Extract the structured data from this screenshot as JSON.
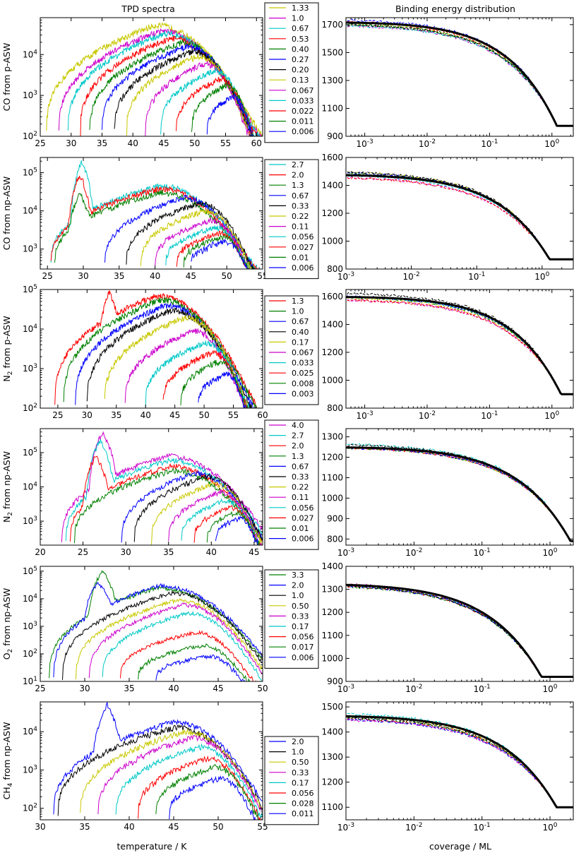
{
  "col_titles": {
    "left": "TPD spectra",
    "right": "Binding energy distribution"
  },
  "xlabels": {
    "left": "temperature / K",
    "right": "coverage / ML"
  },
  "colors": {
    "y": "#c8c800",
    "m": "#cc00cc",
    "c": "#00c8c8",
    "g": "#008000",
    "b": "#0000ff",
    "k": "#000000",
    "r": "#ff0000"
  },
  "chart_data": [
    {
      "type": "line",
      "name": "CO from p-ASW",
      "ylabel": {
        "species": "CO",
        "sub": "",
        "rest": " from p-ASW"
      },
      "tpd": {
        "xlim": [
          25,
          61
        ],
        "xticks": [
          25,
          30,
          35,
          40,
          45,
          50,
          55,
          60
        ],
        "ylim": [
          100,
          80000
        ],
        "yticks": [
          {
            "v": 100,
            "l": "10",
            "e": "2"
          },
          {
            "v": 1000,
            "l": "10",
            "e": "3"
          },
          {
            "v": 10000,
            "l": "10",
            "e": "4"
          }
        ]
      },
      "legend": [
        {
          "label": "1.33",
          "color": "y",
          "peak": 52000,
          "tmin": 26.0,
          "tmax": 58
        },
        {
          "label": "1.0",
          "color": "m",
          "peak": 38000,
          "tmin": 28.0,
          "tmax": 58
        },
        {
          "label": "0.67",
          "color": "c",
          "peak": 33000,
          "tmin": 29.5,
          "tmax": 58
        },
        {
          "label": "0.53",
          "color": "r",
          "peak": 25000,
          "tmin": 31.5,
          "tmax": 58
        },
        {
          "label": "0.40",
          "color": "g",
          "peak": 20000,
          "tmin": 33.0,
          "tmax": 58
        },
        {
          "label": "0.27",
          "color": "b",
          "peak": 16000,
          "tmin": 35.0,
          "tmax": 58
        },
        {
          "label": "0.20",
          "color": "k",
          "peak": 12000,
          "tmin": 37.0,
          "tmax": 58
        },
        {
          "label": "0.13",
          "color": "y",
          "peak": 9000,
          "tmin": 39.0,
          "tmax": 58
        },
        {
          "label": "0.067",
          "color": "m",
          "peak": 6000,
          "tmin": 42.0,
          "tmax": 58
        },
        {
          "label": "0.033",
          "color": "c",
          "peak": 4000,
          "tmin": 44.5,
          "tmax": 59
        },
        {
          "label": "0.022",
          "color": "r",
          "peak": 2500,
          "tmin": 47.0,
          "tmax": 59
        },
        {
          "label": "0.011",
          "color": "g",
          "peak": 1800,
          "tmin": 49.5,
          "tmax": 59
        },
        {
          "label": "0.006",
          "color": "b",
          "peak": 900,
          "tmin": 52.0,
          "tmax": 59
        }
      ],
      "be": {
        "xlim": [
          0.0005,
          2.2
        ],
        "xticks": [
          {
            "v": 0.001,
            "e": "-3"
          },
          {
            "v": 0.01,
            "e": "-2"
          },
          {
            "v": 0.1,
            "e": "-1"
          },
          {
            "v": 1,
            "e": "0"
          }
        ],
        "ylim": [
          900,
          1750
        ],
        "yticks": [
          900,
          1100,
          1300,
          1500,
          1700
        ],
        "e0": 1725,
        "e1": 975,
        "theta_end": 1.2,
        "theta_max": 1.0
      }
    },
    {
      "type": "line",
      "name": "CO from np-ASW",
      "ylabel": {
        "species": "CO",
        "sub": "",
        "rest": " from np-ASW"
      },
      "tpd": {
        "xlim": [
          24,
          55
        ],
        "xticks": [
          25,
          30,
          35,
          40,
          45,
          50,
          55
        ],
        "ylim": [
          300,
          250000
        ],
        "yticks": [
          {
            "v": 1000,
            "l": "10",
            "e": "3"
          },
          {
            "v": 10000,
            "l": "10",
            "e": "4"
          },
          {
            "v": 100000,
            "l": "10",
            "e": "5"
          }
        ]
      },
      "legend": [
        {
          "label": "2.7",
          "color": "c",
          "peak": 45000,
          "tmin": 25.5,
          "tmax": 53,
          "spike": 190000,
          "spikeT": 29.8
        },
        {
          "label": "2.0",
          "color": "r",
          "peak": 38000,
          "tmin": 25.5,
          "tmax": 53,
          "spike": 90000,
          "spikeT": 29.5
        },
        {
          "label": "1.3",
          "color": "g",
          "peak": 30000,
          "tmin": 26.0,
          "tmax": 53,
          "spike": 30000,
          "spikeT": 29.5
        },
        {
          "label": "0.67",
          "color": "b",
          "peak": 22000,
          "tmin": 33.0,
          "tmax": 53
        },
        {
          "label": "0.33",
          "color": "k",
          "peak": 16000,
          "tmin": 36.0,
          "tmax": 53
        },
        {
          "label": "0.22",
          "color": "y",
          "peak": 10000,
          "tmin": 38.0,
          "tmax": 53
        },
        {
          "label": "0.11",
          "color": "m",
          "peak": 5500,
          "tmin": 40.0,
          "tmax": 53
        },
        {
          "label": "0.056",
          "color": "c",
          "peak": 3500,
          "tmin": 41.5,
          "tmax": 53
        },
        {
          "label": "0.027",
          "color": "r",
          "peak": 2500,
          "tmin": 43.0,
          "tmax": 53
        },
        {
          "label": "0.01",
          "color": "g",
          "peak": 2000,
          "tmin": 44.0,
          "tmax": 53
        },
        {
          "label": "0.006",
          "color": "b",
          "peak": 1500,
          "tmin": 45.0,
          "tmax": 53
        }
      ],
      "be": {
        "xlim": [
          0.001,
          3
        ],
        "xticks": [
          {
            "v": 0.001,
            "e": "-3"
          },
          {
            "v": 0.01,
            "e": "-2"
          },
          {
            "v": 0.1,
            "e": "-1"
          },
          {
            "v": 1,
            "e": "0"
          }
        ],
        "ylim": [
          800,
          1600
        ],
        "yticks": [
          800,
          1000,
          1200,
          1400,
          1600
        ],
        "e0": 1485,
        "e1": 870,
        "theta_end": 1.3,
        "theta_max": 1.3
      }
    },
    {
      "type": "line",
      "name": "N2 from p-ASW",
      "ylabel": {
        "species": "N",
        "sub": "2",
        "rest": " from p-ASW"
      },
      "tpd": {
        "xlim": [
          22,
          60
        ],
        "xticks": [
          25,
          30,
          35,
          40,
          45,
          50,
          55,
          60
        ],
        "ylim": [
          100,
          100000
        ],
        "yticks": [
          {
            "v": 100,
            "l": "10",
            "e": "2"
          },
          {
            "v": 1000,
            "l": "10",
            "e": "3"
          },
          {
            "v": 10000,
            "l": "10",
            "e": "4"
          },
          {
            "v": 100000,
            "l": "10",
            "e": "5"
          }
        ]
      },
      "legend": [
        {
          "label": "1.3",
          "color": "r",
          "peak": 70000,
          "tmin": 24.5,
          "tmax": 56,
          "spike": 85000,
          "spikeT": 33.8
        },
        {
          "label": "1.0",
          "color": "g",
          "peak": 55000,
          "tmin": 26.0,
          "tmax": 56
        },
        {
          "label": "0.67",
          "color": "b",
          "peak": 40000,
          "tmin": 28.0,
          "tmax": 56
        },
        {
          "label": "0.40",
          "color": "k",
          "peak": 30000,
          "tmin": 30.0,
          "tmax": 56
        },
        {
          "label": "0.17",
          "color": "y",
          "peak": 20000,
          "tmin": 33.0,
          "tmax": 56
        },
        {
          "label": "0.067",
          "color": "m",
          "peak": 9000,
          "tmin": 36.5,
          "tmax": 56
        },
        {
          "label": "0.033",
          "color": "c",
          "peak": 4500,
          "tmin": 40.0,
          "tmax": 57
        },
        {
          "label": "0.025",
          "color": "r",
          "peak": 2500,
          "tmin": 43.0,
          "tmax": 57
        },
        {
          "label": "0.008",
          "color": "g",
          "peak": 1500,
          "tmin": 46.0,
          "tmax": 57
        },
        {
          "label": "0.003",
          "color": "b",
          "peak": 700,
          "tmin": 49.0,
          "tmax": 57
        }
      ],
      "be": {
        "xlim": [
          0.0005,
          2.2
        ],
        "xticks": [
          {
            "v": 0.001,
            "e": "-3"
          },
          {
            "v": 0.01,
            "e": "-2"
          },
          {
            "v": 0.1,
            "e": "-1"
          },
          {
            "v": 1,
            "e": "0"
          }
        ],
        "ylim": [
          800,
          1650
        ],
        "yticks": [
          800,
          1000,
          1200,
          1400,
          1600
        ],
        "e0": 1605,
        "e1": 900,
        "theta_end": 1.4,
        "theta_max": 1.0
      }
    },
    {
      "type": "line",
      "name": "N2 from np-ASW",
      "ylabel": {
        "species": "N",
        "sub": "2",
        "rest": " from np-ASW"
      },
      "tpd": {
        "xlim": [
          20,
          46
        ],
        "xticks": [
          20,
          25,
          30,
          35,
          40,
          45
        ],
        "ylim": [
          200,
          500000
        ],
        "yticks": [
          {
            "v": 1000,
            "l": "10",
            "e": "3"
          },
          {
            "v": 10000,
            "l": "10",
            "e": "4"
          },
          {
            "v": 100000,
            "l": "10",
            "e": "5"
          }
        ]
      },
      "legend": [
        {
          "label": "4.0",
          "color": "m",
          "peak": 80000,
          "tmin": 22.5,
          "tmax": 45,
          "spike": 380000,
          "spikeT": 27.3
        },
        {
          "label": "2.7",
          "color": "c",
          "peak": 60000,
          "tmin": 23.0,
          "tmax": 45,
          "spike": 220000,
          "spikeT": 27.0
        },
        {
          "label": "2.0",
          "color": "r",
          "peak": 40000,
          "tmin": 23.5,
          "tmax": 45,
          "spike": 80000,
          "spikeT": 26.5
        },
        {
          "label": "1.3",
          "color": "g",
          "peak": 30000,
          "tmin": 24.0,
          "tmax": 45
        },
        {
          "label": "0.67",
          "color": "b",
          "peak": 25000,
          "tmin": 29.5,
          "tmax": 45
        },
        {
          "label": "0.33",
          "color": "k",
          "peak": 20000,
          "tmin": 31.0,
          "tmax": 45
        },
        {
          "label": "0.22",
          "color": "y",
          "peak": 12000,
          "tmin": 33.0,
          "tmax": 45
        },
        {
          "label": "0.11",
          "color": "m",
          "peak": 7000,
          "tmin": 35.0,
          "tmax": 45
        },
        {
          "label": "0.056",
          "color": "c",
          "peak": 4000,
          "tmin": 36.5,
          "tmax": 45
        },
        {
          "label": "0.027",
          "color": "r",
          "peak": 2500,
          "tmin": 38.0,
          "tmax": 45
        },
        {
          "label": "0.01",
          "color": "g",
          "peak": 1800,
          "tmin": 39.5,
          "tmax": 45
        },
        {
          "label": "0.006",
          "color": "b",
          "peak": 1200,
          "tmin": 40.5,
          "tmax": 45
        }
      ],
      "be": {
        "xlim": [
          0.001,
          2.2
        ],
        "xticks": [
          {
            "v": 0.001,
            "e": "-3"
          },
          {
            "v": 0.01,
            "e": "-2"
          },
          {
            "v": 0.1,
            "e": "-1"
          },
          {
            "v": 1,
            "e": "0"
          }
        ],
        "ylim": [
          770,
          1340
        ],
        "yticks": [
          800,
          900,
          1000,
          1100,
          1200,
          1300
        ],
        "e0": 1255,
        "e1": 790,
        "theta_end": 2.0,
        "theta_max": 1.2
      }
    },
    {
      "type": "line",
      "name": "O2 from np-ASW",
      "ylabel": {
        "species": "O",
        "sub": "2",
        "rest": " from np-ASW"
      },
      "tpd": {
        "xlim": [
          25,
          50
        ],
        "xticks": [
          25,
          30,
          35,
          40,
          45,
          50
        ],
        "ylim": [
          10,
          150000
        ],
        "yticks": [
          {
            "v": 10,
            "l": "10",
            "e": "1"
          },
          {
            "v": 100,
            "l": "10",
            "e": "2"
          },
          {
            "v": 1000,
            "l": "10",
            "e": "3"
          },
          {
            "v": 10000,
            "l": "10",
            "e": "4"
          },
          {
            "v": 100000,
            "l": "10",
            "e": "5"
          }
        ]
      },
      "legend": [
        {
          "label": "3.3",
          "color": "g",
          "peak": 25000,
          "tmin": 26.0,
          "tmax": 48,
          "spike": 95000,
          "spikeT": 32.0
        },
        {
          "label": "2.0",
          "color": "b",
          "peak": 30000,
          "tmin": 26.5,
          "tmax": 48,
          "spike": 40000,
          "spikeT": 31.5
        },
        {
          "label": "1.0",
          "color": "k",
          "peak": 16000,
          "tmin": 27.5,
          "tmax": 48
        },
        {
          "label": "0.50",
          "color": "y",
          "peak": 9000,
          "tmin": 29.0,
          "tmax": 48
        },
        {
          "label": "0.33",
          "color": "m",
          "peak": 6000,
          "tmin": 30.5,
          "tmax": 48
        },
        {
          "label": "0.17",
          "color": "c",
          "peak": 3000,
          "tmin": 32.0,
          "tmax": 48
        },
        {
          "label": "0.056",
          "color": "r",
          "peak": 600,
          "tmin": 34.0,
          "tmax": 48
        },
        {
          "label": "0.017",
          "color": "g",
          "peak": 200,
          "tmin": 36.0,
          "tmax": 48
        },
        {
          "label": "0.006",
          "color": "b",
          "peak": 80,
          "tmin": 38.0,
          "tmax": 48
        }
      ],
      "be": {
        "xlim": [
          0.001,
          2.2
        ],
        "xticks": [
          {
            "v": 0.001,
            "e": "-3"
          },
          {
            "v": 0.01,
            "e": "-2"
          },
          {
            "v": 0.1,
            "e": "-1"
          },
          {
            "v": 1,
            "e": "0"
          }
        ],
        "ylim": [
          900,
          1400
        ],
        "yticks": [
          900,
          1000,
          1100,
          1200,
          1300,
          1400
        ],
        "e0": 1330,
        "e1": 920,
        "theta_end": 0.75,
        "theta_max": 1.0
      }
    },
    {
      "type": "line",
      "name": "CH4 from np-ASW",
      "ylabel": {
        "species": "CH",
        "sub": "4",
        "rest": " from np-ASW"
      },
      "tpd": {
        "xlim": [
          30,
          55
        ],
        "xticks": [
          30,
          35,
          40,
          45,
          50,
          55
        ],
        "ylim": [
          50,
          60000
        ],
        "yticks": [
          {
            "v": 100,
            "l": "10",
            "e": "2"
          },
          {
            "v": 1000,
            "l": "10",
            "e": "3"
          },
          {
            "v": 10000,
            "l": "10",
            "e": "4"
          }
        ]
      },
      "legend": [
        {
          "label": "2.0",
          "color": "b",
          "peak": 18000,
          "tmin": 31.5,
          "tmax": 54,
          "spike": 50000,
          "spikeT": 37.5
        },
        {
          "label": "1.0",
          "color": "k",
          "peak": 13000,
          "tmin": 32.0,
          "tmax": 54
        },
        {
          "label": "0.50",
          "color": "y",
          "peak": 10000,
          "tmin": 34.5,
          "tmax": 54
        },
        {
          "label": "0.33",
          "color": "m",
          "peak": 7000,
          "tmin": 36.5,
          "tmax": 54
        },
        {
          "label": "0.17",
          "color": "c",
          "peak": 4000,
          "tmin": 38.5,
          "tmax": 54
        },
        {
          "label": "0.056",
          "color": "r",
          "peak": 2000,
          "tmin": 41.0,
          "tmax": 54
        },
        {
          "label": "0.028",
          "color": "g",
          "peak": 1200,
          "tmin": 43.0,
          "tmax": 54
        },
        {
          "label": "0.011",
          "color": "b",
          "peak": 600,
          "tmin": 44.5,
          "tmax": 54
        }
      ],
      "be": {
        "xlim": [
          0.001,
          2.2
        ],
        "xticks": [
          {
            "v": 0.001,
            "e": "-3"
          },
          {
            "v": 0.01,
            "e": "-2"
          },
          {
            "v": 0.1,
            "e": "-1"
          },
          {
            "v": 1,
            "e": "0"
          }
        ],
        "ylim": [
          1050,
          1520
        ],
        "yticks": [
          1100,
          1200,
          1300,
          1400,
          1500
        ],
        "e0": 1470,
        "e1": 1100,
        "theta_end": 1.25,
        "theta_max": 1.0
      }
    }
  ]
}
